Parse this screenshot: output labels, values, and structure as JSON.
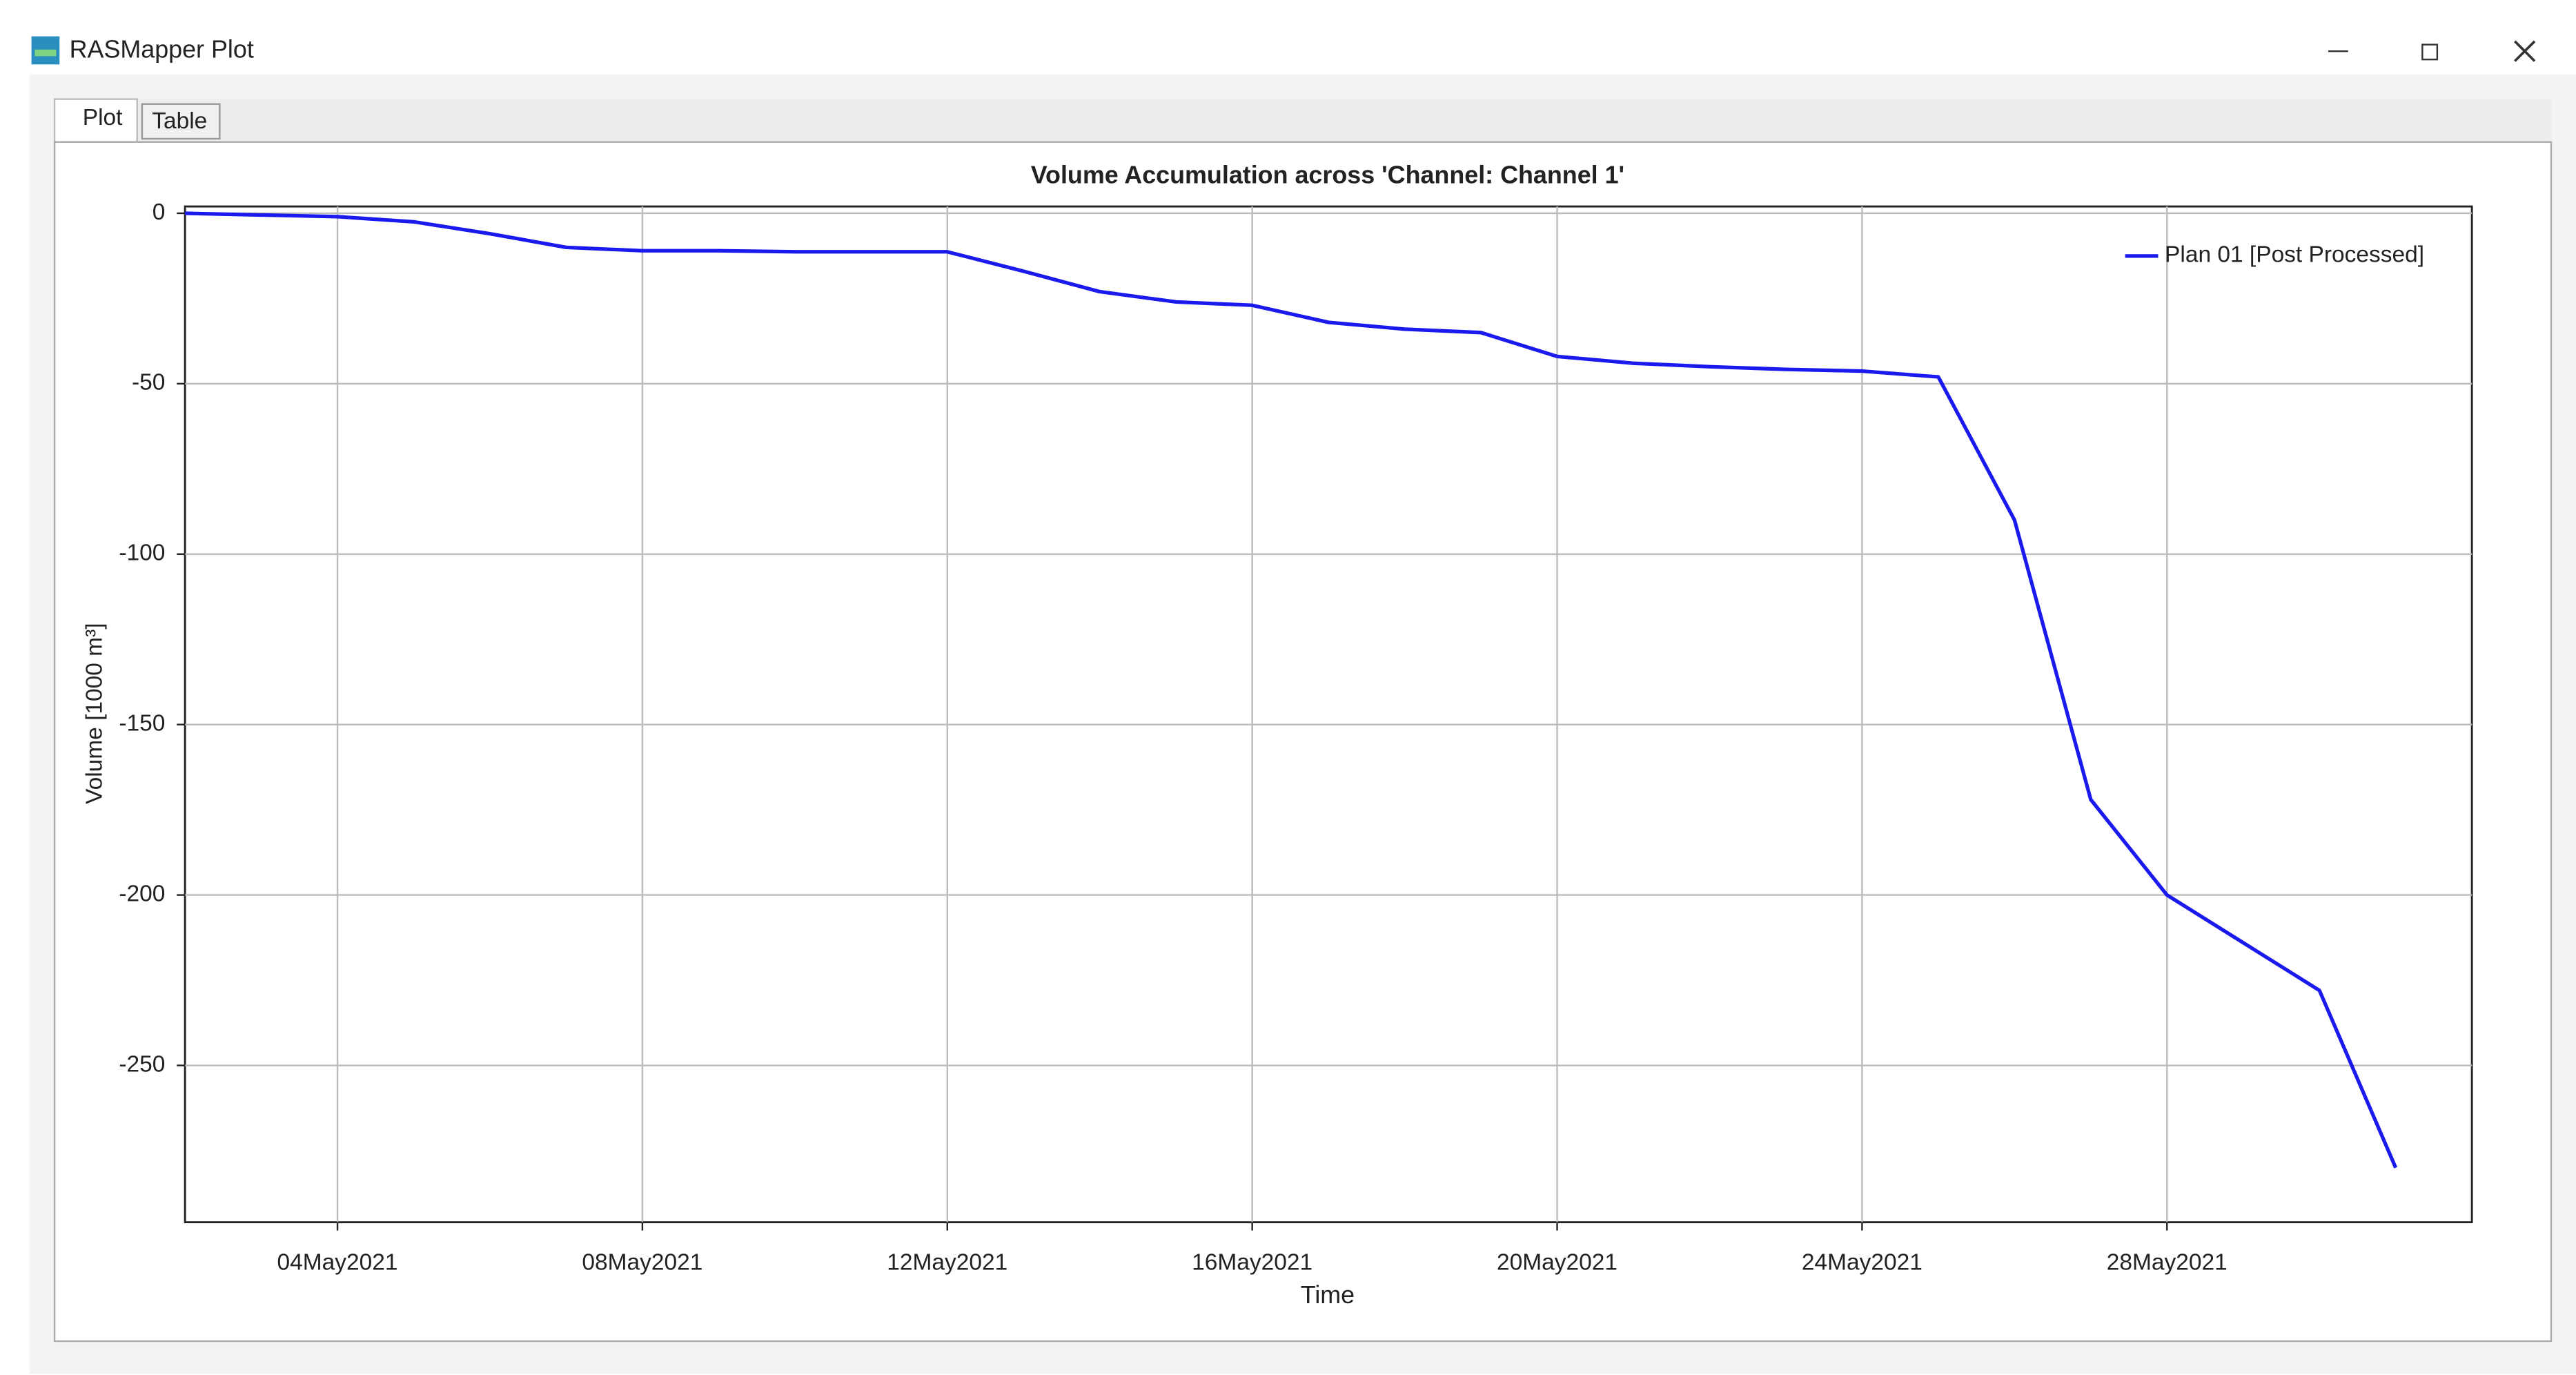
{
  "window": {
    "title": "RASMapper Plot"
  },
  "tabs": [
    "Plot",
    "Table"
  ],
  "chart_data": {
    "type": "line",
    "title": "Volume Accumulation across 'Channel: Channel 1'",
    "x_label": "Time",
    "y_label": "Volume [1000 m³]",
    "x": [
      "2021-05-02",
      "2021-05-03",
      "2021-05-04",
      "2021-05-05",
      "2021-05-06",
      "2021-05-07",
      "2021-05-08",
      "2021-05-09",
      "2021-05-10",
      "2021-05-11",
      "2021-05-12",
      "2021-05-13",
      "2021-05-14",
      "2021-05-15",
      "2021-05-16",
      "2021-05-17",
      "2021-05-18",
      "2021-05-19",
      "2021-05-20",
      "2021-05-21",
      "2021-05-22",
      "2021-05-23",
      "2021-05-24",
      "2021-05-25",
      "2021-05-26",
      "2021-05-27",
      "2021-05-28",
      "2021-05-29",
      "2021-05-30",
      "2021-05-31"
    ],
    "series": [
      {
        "name": "Plan 01 [Post Processed]",
        "color": "#1a1aee",
        "values": [
          0,
          -0.5,
          -1,
          -2.5,
          -6,
          -10,
          -11,
          -11,
          -11.3,
          -11.3,
          -11.3,
          -17,
          -23,
          -26,
          -27,
          -32,
          -34,
          -35,
          -42,
          -44,
          -45,
          -45.8,
          -46.3,
          -48,
          -90,
          -172,
          -200,
          -214,
          -228,
          -280
        ]
      }
    ],
    "xlim": [
      "2021-05-02",
      "2021-06-01"
    ],
    "xticks": [
      {
        "value": "2021-05-04",
        "label": "04May2021"
      },
      {
        "value": "2021-05-08",
        "label": "08May2021"
      },
      {
        "value": "2021-05-12",
        "label": "12May2021"
      },
      {
        "value": "2021-05-16",
        "label": "16May2021"
      },
      {
        "value": "2021-05-20",
        "label": "20May2021"
      },
      {
        "value": "2021-05-24",
        "label": "24May2021"
      },
      {
        "value": "2021-05-28",
        "label": "28May2021"
      }
    ],
    "ylim": [
      -296,
      2
    ],
    "yticks": [
      0,
      -50,
      -100,
      -150,
      -200,
      -250
    ],
    "grid": true,
    "legend": "upper right"
  }
}
